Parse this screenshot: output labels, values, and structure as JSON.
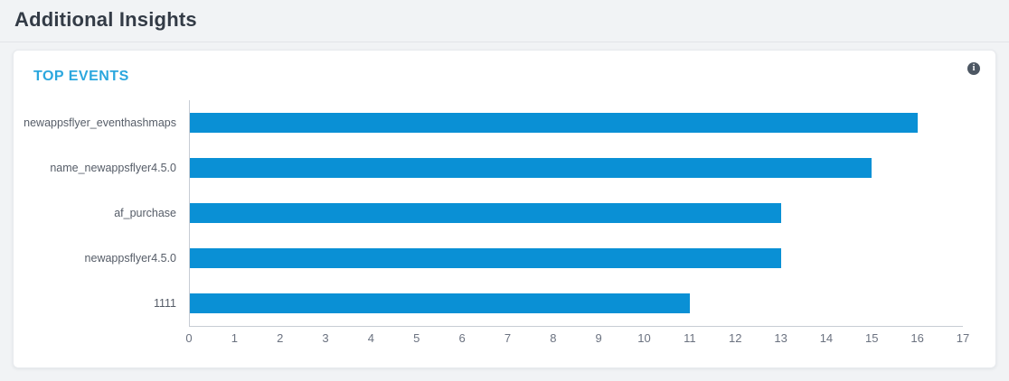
{
  "page": {
    "title": "Additional Insights"
  },
  "card": {
    "title": "TOP EVENTS",
    "accent_color": "#2ba7de",
    "info_icon_glyph": "i"
  },
  "chart_data": {
    "type": "bar",
    "orientation": "horizontal",
    "title": "TOP EVENTS",
    "categories": [
      "newappsflyer_eventhashmaps",
      "name_newappsflyer4.5.0",
      "af_purchase",
      "newappsflyer4.5.0",
      "1111"
    ],
    "values": [
      16,
      15,
      13,
      13,
      11
    ],
    "xlabel": "",
    "ylabel": "",
    "xlim": [
      0,
      17
    ],
    "xticks": [
      0,
      1,
      2,
      3,
      4,
      5,
      6,
      7,
      8,
      9,
      10,
      11,
      12,
      13,
      14,
      15,
      16,
      17
    ],
    "bar_color": "#0a90d5",
    "axis_color": "#c7ccd4",
    "grid": false,
    "legend": false
  }
}
